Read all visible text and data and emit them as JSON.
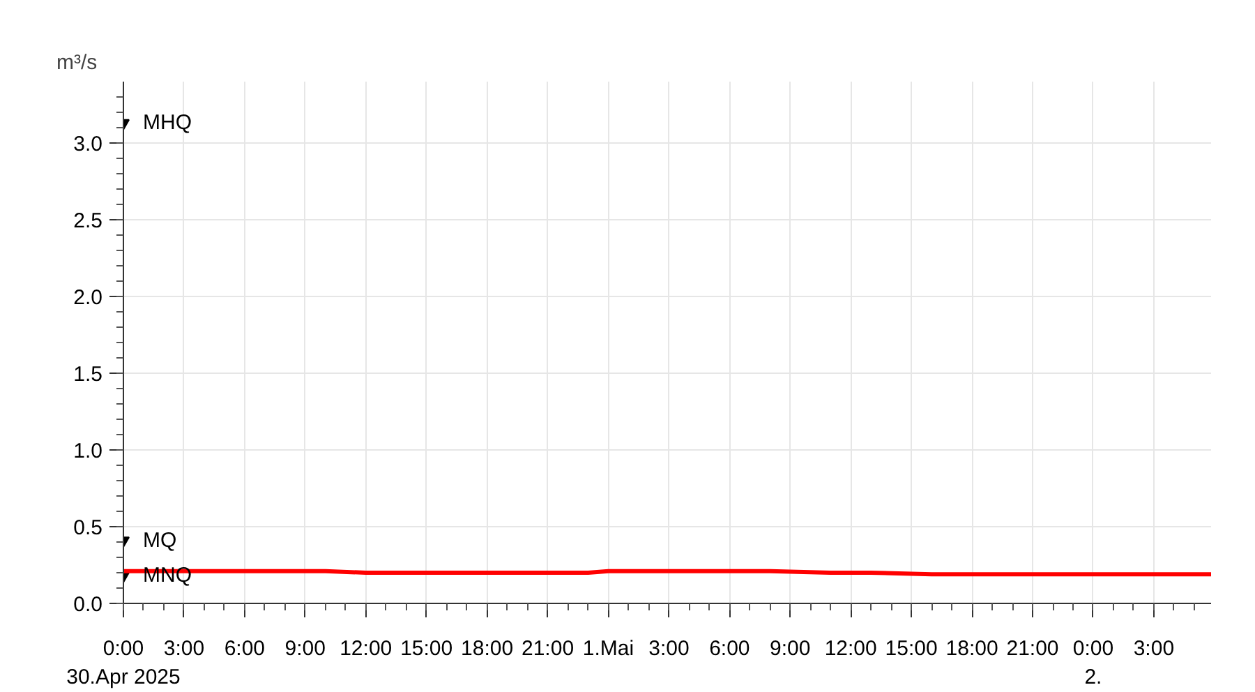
{
  "chart_data": {
    "type": "line",
    "ylabel": "m³/s",
    "x": [
      "2025-04-30T00:00",
      "2025-04-30T06:00",
      "2025-04-30T10:00",
      "2025-04-30T12:00",
      "2025-04-30T18:00",
      "2025-04-30T23:00",
      "2025-05-01T00:00",
      "2025-05-01T06:00",
      "2025-05-01T08:00",
      "2025-05-01T11:00",
      "2025-05-01T13:00",
      "2025-05-01T16:00",
      "2025-05-01T18:00",
      "2025-05-02T00:00",
      "2025-05-02T05:50"
    ],
    "series": [
      {
        "type": "scatter",
        "marker": "triangle",
        "color": "#000000",
        "x": [
          "2025-04-30T00:00",
          "2025-04-30T00:00",
          "2025-04-30T00:00"
        ],
        "values": [
          3.13,
          0.41,
          0.18
        ]
      },
      {
        "color": "#ff0000",
        "values": [
          0.21,
          0.21,
          0.21,
          0.2,
          0.2,
          0.2,
          0.21,
          0.21,
          0.21,
          0.2,
          0.2,
          0.19,
          0.19,
          0.19,
          0.19
        ]
      }
    ],
    "xlim": [
      "2025-04-30T00:00",
      "2025-05-02T05:50"
    ],
    "xticks": [
      {
        "value": "2025-04-30T00:00",
        "label": "0:00\n30.Apr 2025"
      },
      {
        "value": "2025-04-30T03:00",
        "label": "3:00"
      },
      {
        "value": "2025-04-30T06:00",
        "label": "6:00"
      },
      {
        "value": "2025-04-30T09:00",
        "label": "9:00"
      },
      {
        "value": "2025-04-30T12:00",
        "label": "12:00"
      },
      {
        "value": "2025-04-30T15:00",
        "label": "15:00"
      },
      {
        "value": "2025-04-30T18:00",
        "label": "18:00"
      },
      {
        "value": "2025-04-30T21:00",
        "label": "21:00"
      },
      {
        "value": "2025-05-01T00:00",
        "label": "1.Mai"
      },
      {
        "value": "2025-05-01T03:00",
        "label": "3:00"
      },
      {
        "value": "2025-05-01T06:00",
        "label": "6:00"
      },
      {
        "value": "2025-05-01T09:00",
        "label": "9:00"
      },
      {
        "value": "2025-05-01T12:00",
        "label": "12:00"
      },
      {
        "value": "2025-05-01T15:00",
        "label": "15:00"
      },
      {
        "value": "2025-05-01T18:00",
        "label": "18:00"
      },
      {
        "value": "2025-05-01T21:00",
        "label": "21:00"
      },
      {
        "value": "2025-05-02T00:00",
        "label": "0:00\n2."
      },
      {
        "value": "2025-05-02T03:00",
        "label": "3:00"
      }
    ],
    "ylim": [
      0,
      3.4
    ],
    "yticks": [
      {
        "value": 0,
        "label": "0.0"
      },
      0.5,
      {
        "value": 1,
        "label": "1.0"
      },
      1.5,
      {
        "value": 2,
        "label": "2.0"
      },
      2.5,
      {
        "value": 3,
        "label": "3.0"
      }
    ],
    "annotations": [
      {
        "text": "MHQ",
        "x": "2025-04-30T00:00",
        "y": 3.13
      },
      {
        "text": "MQ",
        "x": "2025-04-30T00:00",
        "y": 0.41
      },
      {
        "text": "MNQ",
        "x": "2025-04-30T00:00",
        "y": 0.18
      }
    ],
    "grid": true,
    "line_style": "solid",
    "marker": "none"
  }
}
